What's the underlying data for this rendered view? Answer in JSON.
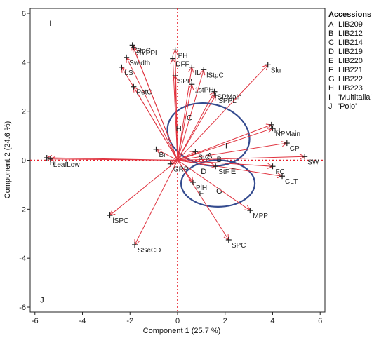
{
  "chart_data": {
    "type": "scatter",
    "subtype": "biplot",
    "xlabel": "Component 1 (25.7 %)",
    "ylabel": "Component 2 (24.6 %)",
    "xlim": [
      -6.2,
      6.2
    ],
    "ylim": [
      -6.2,
      6.2
    ],
    "xticks": [
      -6,
      -4,
      -2,
      0,
      2,
      4,
      6
    ],
    "yticks": [
      -6,
      -4,
      -2,
      0,
      2,
      4,
      6
    ],
    "reference_lines": {
      "x": 0,
      "y": 0,
      "color": "#e8202a",
      "style": "dotted"
    },
    "vector_color": "#e0333f",
    "ellipse_color": "#344b8f",
    "vectors": [
      {
        "label": "StpC",
        "x": -1.9,
        "y": 4.7
      },
      {
        "label": "SYPPL",
        "x": -1.85,
        "y": 4.6
      },
      {
        "label": "Swidth",
        "x": -2.15,
        "y": 4.2
      },
      {
        "label": "LS",
        "x": -2.35,
        "y": 3.8
      },
      {
        "label": "PetC",
        "x": -1.85,
        "y": 3.0
      },
      {
        "label": "PH",
        "x": -0.1,
        "y": 4.5
      },
      {
        "label": "DFF",
        "x": -0.2,
        "y": 4.15
      },
      {
        "label": "IL",
        "x": 0.6,
        "y": 3.8
      },
      {
        "label": "lStpC",
        "x": 1.1,
        "y": 3.7
      },
      {
        "label": "SPP",
        "x": -0.1,
        "y": 3.45
      },
      {
        "label": "1stPH",
        "x": 0.6,
        "y": 3.1
      },
      {
        "label": "SPMain",
        "x": 1.55,
        "y": 2.8
      },
      {
        "label": "SPPL",
        "x": 1.6,
        "y": 2.65
      },
      {
        "label": "Slu",
        "x": 3.8,
        "y": 3.9
      },
      {
        "label": "FL",
        "x": 3.95,
        "y": 1.45
      },
      {
        "label": "NPMain",
        "x": 4.0,
        "y": 1.3
      },
      {
        "label": "CP",
        "x": 4.6,
        "y": 0.7
      },
      {
        "label": "SW",
        "x": 5.35,
        "y": 0.15
      },
      {
        "label": "FC",
        "x": 4.0,
        "y": -0.25
      },
      {
        "label": "CLT",
        "x": 4.4,
        "y": -0.65
      },
      {
        "label": "MPP",
        "x": 3.05,
        "y": -2.05
      },
      {
        "label": "SPC",
        "x": 2.15,
        "y": -3.25
      },
      {
        "label": "StF",
        "x": 1.6,
        "y": -0.25
      },
      {
        "label": "PlH",
        "x": 0.65,
        "y": -0.9
      },
      {
        "label": "GRP",
        "x": -0.3,
        "y": -0.15
      },
      {
        "label": "Br",
        "x": -0.9,
        "y": 0.45
      },
      {
        "label": "StC",
        "x": 0.75,
        "y": 0.35
      },
      {
        "label": "BL",
        "x": -5.5,
        "y": 0.1
      },
      {
        "label": "LeafLow",
        "x": -5.35,
        "y": 0.05
      },
      {
        "label": "lSPC",
        "x": -2.85,
        "y": -2.25
      },
      {
        "label": "SSeCD",
        "x": -1.8,
        "y": -3.45
      }
    ],
    "points": [
      {
        "label": "A",
        "x": 1.35,
        "y": 0.2
      },
      {
        "label": "B",
        "x": 1.75,
        "y": 0.05
      },
      {
        "label": "C",
        "x": 0.5,
        "y": 1.75
      },
      {
        "label": "D",
        "x": 1.1,
        "y": -0.45
      },
      {
        "label": "E",
        "x": 2.35,
        "y": -0.45
      },
      {
        "label": "F",
        "x": 1.0,
        "y": -1.35
      },
      {
        "label": "G",
        "x": 1.75,
        "y": -1.25
      },
      {
        "label": "H",
        "x": 0.05,
        "y": 1.3
      },
      {
        "label": "I",
        "x": 2.05,
        "y": 0.6
      },
      {
        "label": "J",
        "x": -5.7,
        "y": -5.7
      },
      {
        "label": "I",
        "x": -5.35,
        "y": 5.6
      }
    ],
    "ellipses": [
      {
        "cx": 1.3,
        "cy": 1.05,
        "rx": 1.75,
        "ry": 1.25,
        "rotate": 14
      },
      {
        "cx": 1.7,
        "cy": -0.95,
        "rx": 1.55,
        "ry": 0.95,
        "rotate": 0
      }
    ]
  },
  "legend": {
    "title": "Accessions",
    "entries": [
      {
        "key": "A",
        "name": "LIB209"
      },
      {
        "key": "B",
        "name": "LIB212"
      },
      {
        "key": "C",
        "name": "LIB214"
      },
      {
        "key": "D",
        "name": "LIB219"
      },
      {
        "key": "E",
        "name": "LIB220"
      },
      {
        "key": "F",
        "name": "LIB221"
      },
      {
        "key": "G",
        "name": "LIB222"
      },
      {
        "key": "H",
        "name": "LIB223"
      },
      {
        "key": "I",
        "name": "'Multitalia'"
      },
      {
        "key": "J",
        "name": "'Polo'"
      }
    ]
  }
}
